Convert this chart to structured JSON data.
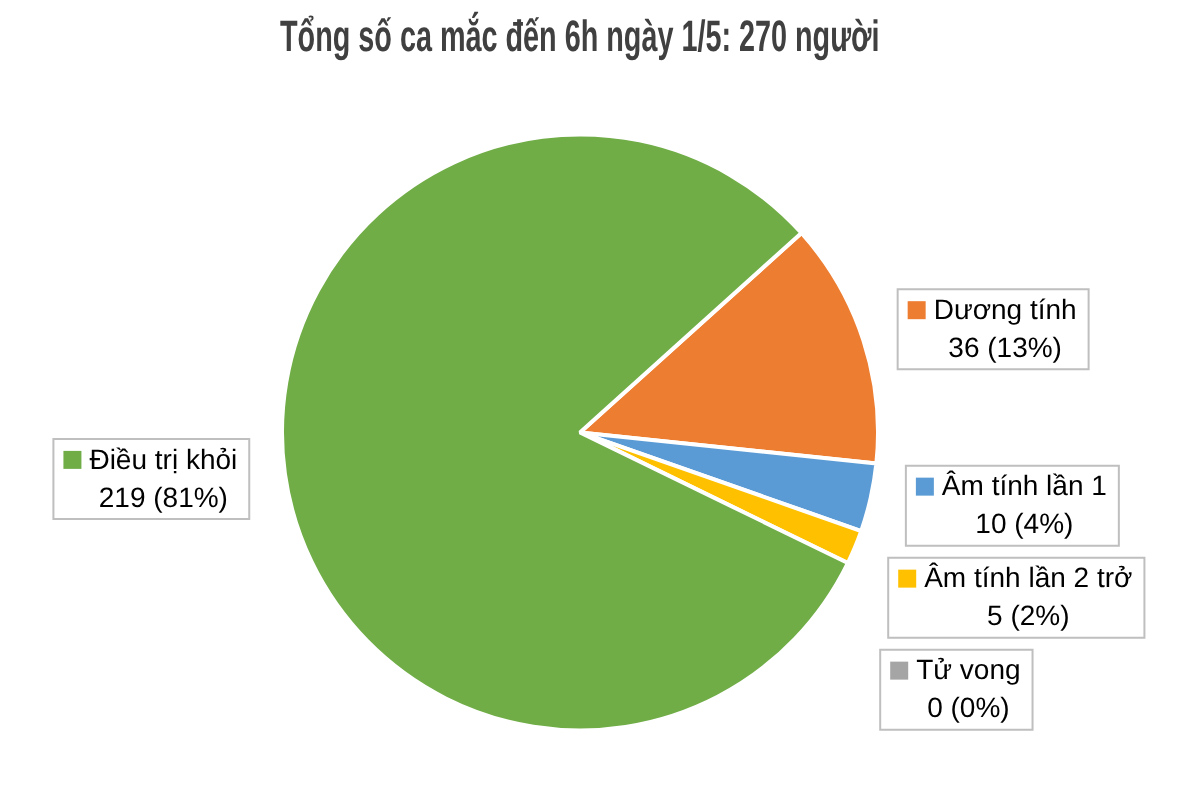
{
  "chart_data": {
    "type": "pie",
    "title": "Tổng số ca mắc đến 6h ngày 1/5: 270 người",
    "categories": [
      "Dương tính",
      "Âm tính lần 1",
      "Âm tính lần 2 trở",
      "Tử vong",
      "Điều trị khỏi"
    ],
    "values": [
      36,
      10,
      5,
      0,
      219
    ],
    "value_labels": [
      "36 (13%)",
      "10 (4%)",
      "5 (2%)",
      "0 (0%)",
      "219 (81%)"
    ],
    "colors": [
      "#ed7d31",
      "#5b9bd5",
      "#ffc000",
      "#a5a5a5",
      "#70ad47"
    ],
    "legend": "right"
  }
}
